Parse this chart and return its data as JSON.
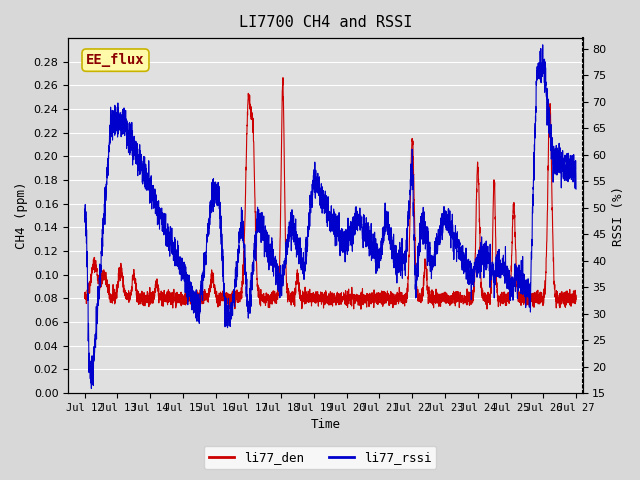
{
  "title": "LI7700 CH4 and RSSI",
  "xlabel": "Time",
  "ylabel_left": "CH4 (ppm)",
  "ylabel_right": "RSSI (%)",
  "annotation": "EE_flux",
  "xlim_days": [
    11.5,
    27.2
  ],
  "ylim_left": [
    0.0,
    0.3
  ],
  "ylim_right": [
    15,
    82
  ],
  "yticks_left": [
    0.0,
    0.02,
    0.04,
    0.06,
    0.08,
    0.1,
    0.12,
    0.14,
    0.16,
    0.18,
    0.2,
    0.22,
    0.24,
    0.26,
    0.28
  ],
  "yticks_right": [
    15,
    20,
    25,
    30,
    35,
    40,
    45,
    50,
    55,
    60,
    65,
    70,
    75,
    80
  ],
  "xtick_labels": [
    "Jul 12",
    "Jul 13",
    "Jul 14",
    "Jul 15",
    "Jul 16",
    "Jul 17",
    "Jul 18",
    "Jul 19",
    "Jul 20",
    "Jul 21",
    "Jul 22",
    "Jul 23",
    "Jul 24",
    "Jul 25",
    "Jul 26",
    "Jul 27"
  ],
  "xtick_positions": [
    12,
    13,
    14,
    15,
    16,
    17,
    18,
    19,
    20,
    21,
    22,
    23,
    24,
    25,
    26,
    27
  ],
  "color_den": "#cc0000",
  "color_rssi": "#0000cc",
  "bg_color": "#e8e8e8",
  "plot_bg_color": "#e0e0e0",
  "legend_labels": [
    "li77_den",
    "li77_rssi"
  ],
  "font_family": "monospace"
}
